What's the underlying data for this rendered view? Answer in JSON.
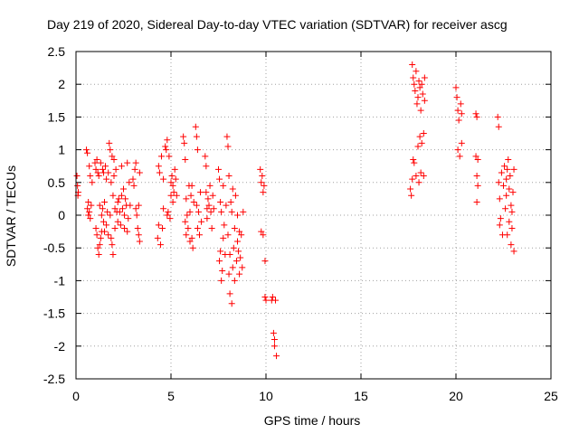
{
  "chart_data": {
    "type": "scatter",
    "title": "Day 219 of 2020, Sidereal Day-to-day VTEC variation (SDTVAR) for receiver ascg",
    "xlabel": "GPS time / hours",
    "ylabel": "SDTVAR / TECUs",
    "xlim": [
      0,
      25
    ],
    "ylim": [
      -2.5,
      2.5
    ],
    "x_ticks": [
      0,
      5,
      10,
      15,
      20,
      25
    ],
    "y_ticks": [
      -2.5,
      -2,
      -1.5,
      -1,
      -0.5,
      0,
      0.5,
      1,
      1.5,
      2,
      2.5
    ],
    "x_tick_labels": [
      "0",
      "5",
      "10",
      "15",
      "20",
      "25"
    ],
    "y_tick_labels": [
      "-2.5",
      "-2",
      "-1.5",
      "-1",
      "-0.5",
      "0",
      "0.5",
      "1",
      "1.5",
      "2",
      "2.5"
    ],
    "grid": true,
    "marker": "+",
    "color": "#ff0000",
    "series": [
      {
        "name": "SDTVAR",
        "points": [
          [
            0.05,
            0.6
          ],
          [
            0.08,
            0.45
          ],
          [
            0.1,
            0.3
          ],
          [
            0.12,
            0.35
          ],
          [
            0.55,
            1.0
          ],
          [
            0.6,
            0.95
          ],
          [
            0.6,
            0.1
          ],
          [
            0.65,
            0.0
          ],
          [
            0.65,
            0.2
          ],
          [
            0.7,
            0.05
          ],
          [
            0.7,
            0.75
          ],
          [
            0.75,
            0.6
          ],
          [
            0.75,
            -0.05
          ],
          [
            0.8,
            0.15
          ],
          [
            0.85,
            0.5
          ],
          [
            1.0,
            0.8
          ],
          [
            1.05,
            0.7
          ],
          [
            1.05,
            -0.2
          ],
          [
            1.1,
            -0.3
          ],
          [
            1.1,
            0.85
          ],
          [
            1.15,
            -0.5
          ],
          [
            1.15,
            0.65
          ],
          [
            1.2,
            -0.6
          ],
          [
            1.2,
            0.6
          ],
          [
            1.25,
            -0.45
          ],
          [
            1.25,
            0.15
          ],
          [
            1.3,
            0.8
          ],
          [
            1.3,
            -0.35
          ],
          [
            1.35,
            0.0
          ],
          [
            1.35,
            -0.25
          ],
          [
            1.4,
            0.7
          ],
          [
            1.4,
            0.1
          ],
          [
            1.45,
            -0.1
          ],
          [
            1.45,
            0.65
          ],
          [
            1.5,
            0.2
          ],
          [
            1.5,
            -0.25
          ],
          [
            1.55,
            0.75
          ],
          [
            1.6,
            0.55
          ],
          [
            1.6,
            -0.15
          ],
          [
            1.65,
            0.05
          ],
          [
            1.7,
            0.65
          ],
          [
            1.7,
            -0.3
          ],
          [
            1.75,
            1.1
          ],
          [
            1.8,
            1.0
          ],
          [
            1.8,
            0.0
          ],
          [
            1.85,
            -0.35
          ],
          [
            1.85,
            0.5
          ],
          [
            1.9,
            -0.45
          ],
          [
            1.9,
            0.9
          ],
          [
            1.95,
            -0.6
          ],
          [
            1.95,
            0.3
          ],
          [
            2.0,
            0.85
          ],
          [
            2.0,
            0.6
          ],
          [
            2.05,
            -0.2
          ],
          [
            2.05,
            0.1
          ],
          [
            2.1,
            0.7
          ],
          [
            2.15,
            0.05
          ],
          [
            2.2,
            0.2
          ],
          [
            2.2,
            -0.1
          ],
          [
            2.25,
            0.25
          ],
          [
            2.3,
            0.05
          ],
          [
            2.35,
            -0.15
          ],
          [
            2.4,
            0.3
          ],
          [
            2.4,
            0.75
          ],
          [
            2.45,
            0.1
          ],
          [
            2.5,
            0.4
          ],
          [
            2.55,
            0.0
          ],
          [
            2.55,
            -0.2
          ],
          [
            2.6,
            0.25
          ],
          [
            2.65,
            0.15
          ],
          [
            2.7,
            -0.25
          ],
          [
            2.7,
            0.8
          ],
          [
            2.75,
            -0.05
          ],
          [
            2.8,
            0.5
          ],
          [
            2.85,
            0.15
          ],
          [
            3.0,
            0.55
          ],
          [
            3.05,
            0.45
          ],
          [
            3.1,
            0.7
          ],
          [
            3.15,
            0.8
          ],
          [
            3.15,
            0.1
          ],
          [
            3.2,
            0.0
          ],
          [
            3.25,
            -0.2
          ],
          [
            3.3,
            -0.3
          ],
          [
            3.3,
            0.15
          ],
          [
            3.35,
            -0.4
          ],
          [
            3.35,
            0.65
          ],
          [
            4.3,
            -0.35
          ],
          [
            4.35,
            -0.15
          ],
          [
            4.35,
            0.75
          ],
          [
            4.4,
            0.65
          ],
          [
            4.45,
            -0.45
          ],
          [
            4.5,
            0.9
          ],
          [
            4.55,
            -0.2
          ],
          [
            4.6,
            0.55
          ],
          [
            4.6,
            0.1
          ],
          [
            4.7,
            1.05
          ],
          [
            4.75,
            1.0
          ],
          [
            4.8,
            1.15
          ],
          [
            4.8,
            0.0
          ],
          [
            4.85,
            0.05
          ],
          [
            4.9,
            0.9
          ],
          [
            4.95,
            -0.05
          ],
          [
            5.0,
            0.3
          ],
          [
            5.0,
            0.5
          ],
          [
            5.05,
            0.6
          ],
          [
            5.1,
            0.2
          ],
          [
            5.1,
            0.45
          ],
          [
            5.15,
            0.35
          ],
          [
            5.2,
            0.7
          ],
          [
            5.25,
            0.55
          ],
          [
            5.3,
            0.3
          ],
          [
            5.65,
            1.2
          ],
          [
            5.7,
            1.1
          ],
          [
            5.75,
            0.85
          ],
          [
            5.75,
            -0.1
          ],
          [
            5.8,
            -0.3
          ],
          [
            5.8,
            0.25
          ],
          [
            5.85,
            0.0
          ],
          [
            5.9,
            -0.2
          ],
          [
            5.95,
            0.45
          ],
          [
            6.0,
            -0.4
          ],
          [
            6.0,
            0.05
          ],
          [
            6.05,
            0.3
          ],
          [
            6.1,
            -0.35
          ],
          [
            6.1,
            0.45
          ],
          [
            6.15,
            -0.5
          ],
          [
            6.2,
            0.2
          ],
          [
            6.3,
            1.35
          ],
          [
            6.35,
            1.2
          ],
          [
            6.35,
            0.15
          ],
          [
            6.4,
            1.0
          ],
          [
            6.4,
            -0.2
          ],
          [
            6.45,
            0.05
          ],
          [
            6.5,
            -0.3
          ],
          [
            6.55,
            0.35
          ],
          [
            6.6,
            -0.1
          ],
          [
            6.8,
            0.9
          ],
          [
            6.85,
            0.75
          ],
          [
            6.85,
            0.35
          ],
          [
            6.9,
            0.1
          ],
          [
            6.9,
            -0.05
          ],
          [
            6.95,
            0.25
          ],
          [
            7.0,
            0.15
          ],
          [
            7.05,
            0.45
          ],
          [
            7.1,
            0.05
          ],
          [
            7.15,
            -0.2
          ],
          [
            7.2,
            0.3
          ],
          [
            7.25,
            0.1
          ],
          [
            7.5,
            0.7
          ],
          [
            7.55,
            0.55
          ],
          [
            7.55,
            -0.7
          ],
          [
            7.6,
            0.2
          ],
          [
            7.6,
            -0.55
          ],
          [
            7.65,
            -1.0
          ],
          [
            7.65,
            0.05
          ],
          [
            7.7,
            -0.85
          ],
          [
            7.75,
            -0.35
          ],
          [
            7.75,
            0.45
          ],
          [
            7.8,
            -0.15
          ],
          [
            7.85,
            -0.6
          ],
          [
            7.9,
            0.15
          ],
          [
            7.95,
            1.2
          ],
          [
            8.0,
            1.05
          ],
          [
            8.0,
            -0.3
          ],
          [
            8.05,
            -0.9
          ],
          [
            8.05,
            0.6
          ],
          [
            8.1,
            -1.2
          ],
          [
            8.1,
            -0.6
          ],
          [
            8.15,
            0.2
          ],
          [
            8.2,
            -1.35
          ],
          [
            8.2,
            0.05
          ],
          [
            8.25,
            -0.8
          ],
          [
            8.25,
            0.4
          ],
          [
            8.3,
            -0.5
          ],
          [
            8.35,
            -1.0
          ],
          [
            8.35,
            -0.2
          ],
          [
            8.4,
            0.3
          ],
          [
            8.45,
            -0.7
          ],
          [
            8.5,
            -0.4
          ],
          [
            8.5,
            0.0
          ],
          [
            8.55,
            -0.55
          ],
          [
            8.6,
            -0.9
          ],
          [
            8.6,
            -0.25
          ],
          [
            8.65,
            -0.65
          ],
          [
            8.7,
            -0.3
          ],
          [
            8.75,
            -0.8
          ],
          [
            8.8,
            0.05
          ],
          [
            9.7,
            0.7
          ],
          [
            9.75,
            0.5
          ],
          [
            9.75,
            -0.25
          ],
          [
            9.8,
            0.6
          ],
          [
            9.85,
            0.35
          ],
          [
            9.85,
            -0.3
          ],
          [
            9.9,
            0.45
          ],
          [
            9.95,
            -0.7
          ],
          [
            9.95,
            -1.25
          ],
          [
            10.0,
            -1.3
          ],
          [
            10.3,
            -1.3
          ],
          [
            10.35,
            -1.25
          ],
          [
            10.4,
            -1.8
          ],
          [
            10.45,
            -1.9
          ],
          [
            10.45,
            -2.0
          ],
          [
            10.5,
            -1.3
          ],
          [
            10.55,
            -2.15
          ],
          [
            17.6,
            0.4
          ],
          [
            17.65,
            0.3
          ],
          [
            17.7,
            0.55
          ],
          [
            17.7,
            2.3
          ],
          [
            17.75,
            2.1
          ],
          [
            17.75,
            0.85
          ],
          [
            17.8,
            2.0
          ],
          [
            17.8,
            0.8
          ],
          [
            17.85,
            1.9
          ],
          [
            17.9,
            0.6
          ],
          [
            17.9,
            2.2
          ],
          [
            17.95,
            1.7
          ],
          [
            18.0,
            1.8
          ],
          [
            18.0,
            1.05
          ],
          [
            18.05,
            2.05
          ],
          [
            18.05,
            0.5
          ],
          [
            18.1,
            1.2
          ],
          [
            18.1,
            1.95
          ],
          [
            18.15,
            1.6
          ],
          [
            18.15,
            0.65
          ],
          [
            18.2,
            1.1
          ],
          [
            18.2,
            2.0
          ],
          [
            18.25,
            1.85
          ],
          [
            18.3,
            1.25
          ],
          [
            18.3,
            0.6
          ],
          [
            18.35,
            1.75
          ],
          [
            18.35,
            2.1
          ],
          [
            20.0,
            1.95
          ],
          [
            20.05,
            1.8
          ],
          [
            20.1,
            1.6
          ],
          [
            20.1,
            1.0
          ],
          [
            20.15,
            1.45
          ],
          [
            20.2,
            0.9
          ],
          [
            20.25,
            1.7
          ],
          [
            20.3,
            1.1
          ],
          [
            20.3,
            1.55
          ],
          [
            21.05,
            1.55
          ],
          [
            21.1,
            1.5
          ],
          [
            21.05,
            0.9
          ],
          [
            21.1,
            0.6
          ],
          [
            21.15,
            0.45
          ],
          [
            21.1,
            0.2
          ],
          [
            21.15,
            0.85
          ],
          [
            22.2,
            1.5
          ],
          [
            22.25,
            1.35
          ],
          [
            22.25,
            0.5
          ],
          [
            22.3,
            -0.15
          ],
          [
            22.3,
            0.25
          ],
          [
            22.35,
            -0.05
          ],
          [
            22.4,
            0.65
          ],
          [
            22.45,
            -0.3
          ],
          [
            22.5,
            0.45
          ],
          [
            22.55,
            0.75
          ],
          [
            22.6,
            0.1
          ],
          [
            22.65,
            0.3
          ],
          [
            22.65,
            0.55
          ],
          [
            22.7,
            -0.3
          ],
          [
            22.7,
            0.7
          ],
          [
            22.75,
            0.85
          ],
          [
            22.8,
            -0.1
          ],
          [
            22.8,
            0.4
          ],
          [
            22.85,
            0.6
          ],
          [
            22.9,
            0.15
          ],
          [
            22.9,
            -0.45
          ],
          [
            22.95,
            0.05
          ],
          [
            22.95,
            -0.2
          ],
          [
            23.0,
            0.35
          ],
          [
            23.05,
            -0.55
          ],
          [
            23.05,
            0.7
          ]
        ]
      }
    ]
  }
}
